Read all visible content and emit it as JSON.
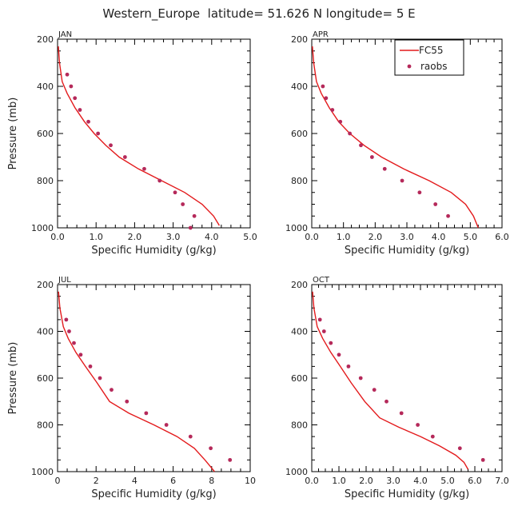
{
  "figure": {
    "title": "Western_Europe  latitude= 51.626 N longitude= 5 E"
  },
  "colors": {
    "model_line": "#e31a1c",
    "obs_marker": "#b5295a",
    "axis": "#000000"
  },
  "chart_data": [
    {
      "type": "line",
      "panel_label": "JAN",
      "xlabel": "Specific Humidity (g/kg)",
      "ylabel": "Pressure (mb)",
      "xlim": [
        0,
        5
      ],
      "ylim": [
        1000,
        200
      ],
      "xticks": [
        0,
        1,
        2,
        3,
        4,
        5
      ],
      "xtick_labels": [
        "0.0",
        "1.0",
        "2.0",
        "3.0",
        "4.0",
        "5.0"
      ],
      "yticks": [
        200,
        400,
        600,
        800,
        1000
      ],
      "ytick_labels": [
        "200",
        "400",
        "600",
        "800",
        "1000"
      ],
      "legend": null,
      "series": [
        {
          "kind": "line",
          "x": [
            0.02,
            0.05,
            0.12,
            0.25,
            0.45,
            0.7,
            0.95,
            1.25,
            1.6,
            2.1,
            2.7,
            3.3,
            3.75,
            4.05,
            4.2
          ],
          "y": [
            230,
            300,
            380,
            430,
            490,
            550,
            600,
            650,
            700,
            750,
            800,
            850,
            900,
            950,
            990
          ]
        },
        {
          "kind": "scatter",
          "x": [
            0.25,
            0.35,
            0.45,
            0.58,
            0.8,
            1.05,
            1.38,
            1.75,
            2.25,
            2.65,
            3.05,
            3.25,
            3.55,
            3.45
          ],
          "y": [
            350,
            400,
            450,
            500,
            550,
            600,
            650,
            700,
            750,
            800,
            850,
            900,
            950,
            1000
          ]
        }
      ]
    },
    {
      "type": "line",
      "panel_label": "APR",
      "xlabel": "Specific Humidity (g/kg)",
      "ylabel": "",
      "xlim": [
        0,
        6
      ],
      "ylim": [
        1000,
        200
      ],
      "xticks": [
        0,
        1,
        2,
        3,
        4,
        5,
        6
      ],
      "xtick_labels": [
        "0.0",
        "1.0",
        "2.0",
        "3.0",
        "4.0",
        "5.0",
        "6.0"
      ],
      "yticks": [
        200,
        400,
        600,
        800,
        1000
      ],
      "ytick_labels": [
        "200",
        "400",
        "600",
        "800",
        "1000"
      ],
      "legend": {
        "position": "top-right",
        "entries": [
          "FC55",
          "raobs"
        ]
      },
      "series": [
        {
          "name": "FC55",
          "kind": "line",
          "x": [
            0.02,
            0.06,
            0.15,
            0.3,
            0.55,
            0.85,
            1.2,
            1.65,
            2.2,
            2.9,
            3.7,
            4.4,
            4.85,
            5.1,
            5.25
          ],
          "y": [
            230,
            300,
            380,
            430,
            490,
            550,
            600,
            650,
            700,
            750,
            800,
            850,
            900,
            950,
            1000
          ]
        },
        {
          "name": "raobs",
          "kind": "scatter",
          "x": [
            0.35,
            0.45,
            0.65,
            0.9,
            1.2,
            1.55,
            1.9,
            2.3,
            2.85,
            3.4,
            3.9,
            4.3
          ],
          "y": [
            400,
            450,
            500,
            550,
            600,
            650,
            700,
            750,
            800,
            850,
            900,
            950
          ]
        }
      ]
    },
    {
      "type": "line",
      "panel_label": "JUL",
      "xlabel": "Specific Humidity (g/kg)",
      "ylabel": "Pressure (mb)",
      "xlim": [
        0,
        10
      ],
      "ylim": [
        1000,
        200
      ],
      "xticks": [
        0,
        2,
        4,
        6,
        8,
        10
      ],
      "xtick_labels": [
        "0",
        "2",
        "4",
        "6",
        "8",
        "10"
      ],
      "yticks": [
        200,
        400,
        600,
        800,
        1000
      ],
      "ytick_labels": [
        "200",
        "400",
        "600",
        "800",
        "1000"
      ],
      "legend": null,
      "series": [
        {
          "kind": "line",
          "x": [
            0.05,
            0.12,
            0.3,
            0.55,
            0.95,
            1.45,
            2.05,
            2.7,
            3.7,
            5.0,
            6.2,
            7.1,
            7.65,
            7.95,
            8.15
          ],
          "y": [
            230,
            300,
            380,
            430,
            490,
            550,
            620,
            700,
            750,
            800,
            850,
            900,
            950,
            980,
            1000
          ]
        },
        {
          "kind": "scatter",
          "x": [
            0.45,
            0.6,
            0.85,
            1.2,
            1.7,
            2.2,
            2.8,
            3.6,
            4.6,
            5.65,
            6.9,
            7.95,
            8.95
          ],
          "y": [
            350,
            400,
            450,
            500,
            550,
            600,
            650,
            700,
            750,
            800,
            850,
            900,
            950
          ]
        }
      ]
    },
    {
      "type": "line",
      "panel_label": "OCT",
      "xlabel": "Specific Humidity (g/kg)",
      "ylabel": "",
      "xlim": [
        0,
        7
      ],
      "ylim": [
        1000,
        200
      ],
      "xticks": [
        0,
        1,
        2,
        3,
        4,
        5,
        6,
        7
      ],
      "xtick_labels": [
        "0.0",
        "1.0",
        "2.0",
        "3.0",
        "4.0",
        "5.0",
        "6.0",
        "7.0"
      ],
      "yticks": [
        200,
        400,
        600,
        800,
        1000
      ],
      "ytick_labels": [
        "200",
        "400",
        "600",
        "800",
        "1000"
      ],
      "legend": null,
      "series": [
        {
          "kind": "line",
          "x": [
            0.03,
            0.08,
            0.2,
            0.4,
            0.7,
            1.05,
            1.45,
            1.95,
            2.5,
            3.2,
            4.0,
            4.7,
            5.3,
            5.6,
            5.75
          ],
          "y": [
            230,
            300,
            380,
            430,
            490,
            550,
            620,
            700,
            770,
            810,
            850,
            890,
            930,
            960,
            990
          ]
        },
        {
          "kind": "scatter",
          "x": [
            0.3,
            0.45,
            0.7,
            1.0,
            1.35,
            1.8,
            2.3,
            2.75,
            3.3,
            3.9,
            4.45,
            5.45,
            6.3
          ],
          "y": [
            350,
            400,
            450,
            500,
            550,
            600,
            650,
            700,
            750,
            800,
            850,
            900,
            950
          ]
        }
      ]
    }
  ]
}
